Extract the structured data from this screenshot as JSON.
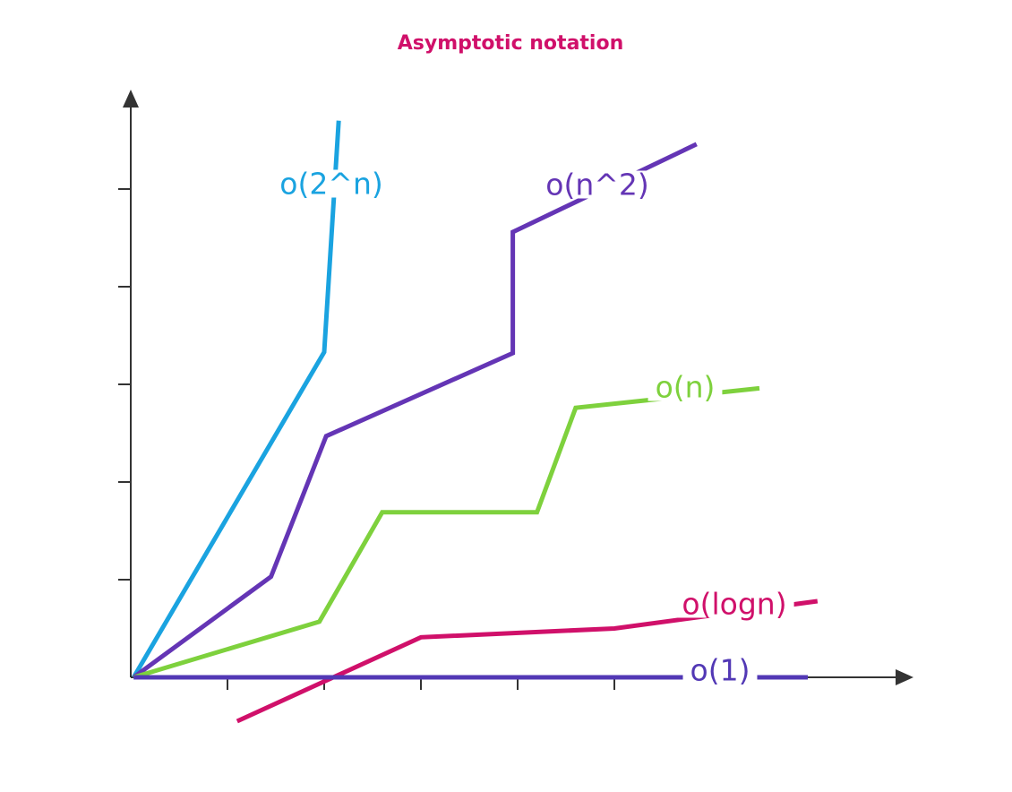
{
  "chart_data": {
    "type": "line",
    "title": "Asymptotic notation",
    "xlabel": "",
    "ylabel": "",
    "xlim": [
      0,
      8
    ],
    "ylim": [
      0,
      6
    ],
    "x_ticks": [
      1,
      2,
      3,
      4,
      5
    ],
    "y_ticks": [
      1,
      2,
      3,
      4,
      5
    ],
    "tick_labels_shown": false,
    "grid": false,
    "legend": "inline labels",
    "series": [
      {
        "name": "o(2^n)",
        "color": "#1aa3e0",
        "points": [
          [
            0.03,
            0.0
          ],
          [
            2.0,
            3.33
          ],
          [
            2.15,
            5.7
          ]
        ]
      },
      {
        "name": "o(n^2)",
        "color": "#6435b5",
        "points": [
          [
            0.03,
            0.0
          ],
          [
            1.45,
            1.03
          ],
          [
            2.02,
            2.47
          ],
          [
            3.95,
            3.32
          ],
          [
            3.95,
            4.56
          ],
          [
            5.85,
            5.46
          ]
        ]
      },
      {
        "name": "o(n)",
        "color": "#7ed13d",
        "points": [
          [
            0.03,
            0.0
          ],
          [
            1.95,
            0.57
          ],
          [
            2.6,
            1.69
          ],
          [
            4.2,
            1.69
          ],
          [
            4.6,
            2.76
          ],
          [
            6.5,
            2.96
          ]
        ]
      },
      {
        "name": "o(logn)",
        "color": "#d0106a",
        "points": [
          [
            1.1,
            -0.45
          ],
          [
            3.0,
            0.41
          ],
          [
            5.0,
            0.5
          ],
          [
            7.1,
            0.78
          ]
        ]
      },
      {
        "name": "o(1)",
        "color": "#5238b5",
        "points": [
          [
            0.03,
            0.0
          ],
          [
            7.0,
            0.0
          ]
        ]
      }
    ],
    "labels": [
      "o(2^n)",
      "o(n^2)",
      "o(n)",
      "o(logn)",
      "o(1)"
    ]
  }
}
